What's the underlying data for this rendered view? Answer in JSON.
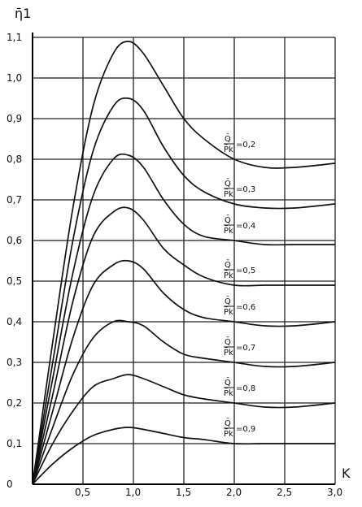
{
  "chart_data": {
    "type": "line",
    "title": "",
    "ylabel": "η̄1",
    "xlabel": "K",
    "xlim": [
      0,
      3.0
    ],
    "ylim": [
      0,
      1.1
    ],
    "grid": true,
    "x_ticks": [
      "0,5",
      "1,0",
      "1,5",
      "2,0",
      "2,5",
      "3,0"
    ],
    "y_ticks": [
      "0",
      "0,1",
      "0,2",
      "0,3",
      "0,4",
      "0,5",
      "0,6",
      "0,7",
      "0,8",
      "0,9",
      "1,0",
      "1,1"
    ],
    "x_tick_values": [
      0.5,
      1.0,
      1.5,
      2.0,
      2.5,
      3.0
    ],
    "y_tick_values": [
      0,
      0.1,
      0.2,
      0.3,
      0.4,
      0.5,
      0.6,
      0.7,
      0.8,
      0.9,
      1.0,
      1.1
    ],
    "curve_labels_text": {
      "numerator": "Q̄",
      "denominator": "P̄k"
    },
    "series": [
      {
        "name": "0,2",
        "x": [
          0,
          0.2,
          0.4,
          0.6,
          0.8,
          0.95,
          1.1,
          1.3,
          1.5,
          1.7,
          2.0,
          2.3,
          2.6,
          3.0
        ],
        "y": [
          0,
          0.35,
          0.68,
          0.93,
          1.06,
          1.09,
          1.06,
          0.98,
          0.9,
          0.85,
          0.8,
          0.78,
          0.78,
          0.79
        ]
      },
      {
        "name": "0,3",
        "x": [
          0,
          0.2,
          0.4,
          0.6,
          0.8,
          0.95,
          1.1,
          1.3,
          1.5,
          1.7,
          2.0,
          2.3,
          2.6,
          3.0
        ],
        "y": [
          0,
          0.3,
          0.6,
          0.82,
          0.93,
          0.95,
          0.92,
          0.83,
          0.76,
          0.72,
          0.69,
          0.68,
          0.68,
          0.69
        ]
      },
      {
        "name": "0,4",
        "x": [
          0,
          0.2,
          0.4,
          0.6,
          0.8,
          0.95,
          1.1,
          1.3,
          1.5,
          1.7,
          2.0,
          2.3,
          2.6,
          3.0
        ],
        "y": [
          0,
          0.26,
          0.52,
          0.71,
          0.8,
          0.81,
          0.78,
          0.7,
          0.64,
          0.61,
          0.6,
          0.59,
          0.59,
          0.59
        ]
      },
      {
        "name": "0,5",
        "x": [
          0,
          0.2,
          0.4,
          0.6,
          0.8,
          0.95,
          1.1,
          1.3,
          1.5,
          1.7,
          2.0,
          2.3,
          2.6,
          3.0
        ],
        "y": [
          0,
          0.22,
          0.45,
          0.61,
          0.67,
          0.68,
          0.65,
          0.58,
          0.54,
          0.51,
          0.49,
          0.49,
          0.49,
          0.49
        ]
      },
      {
        "name": "0,6",
        "x": [
          0,
          0.2,
          0.4,
          0.6,
          0.8,
          0.95,
          1.1,
          1.3,
          1.5,
          1.7,
          2.0,
          2.3,
          2.6,
          3.0
        ],
        "y": [
          0,
          0.18,
          0.36,
          0.49,
          0.54,
          0.55,
          0.53,
          0.47,
          0.43,
          0.41,
          0.4,
          0.39,
          0.39,
          0.4
        ]
      },
      {
        "name": "0,7",
        "x": [
          0,
          0.2,
          0.4,
          0.6,
          0.8,
          0.95,
          1.1,
          1.3,
          1.5,
          1.7,
          2.0,
          2.3,
          2.6,
          3.0
        ],
        "y": [
          0,
          0.14,
          0.27,
          0.36,
          0.4,
          0.4,
          0.39,
          0.35,
          0.32,
          0.31,
          0.3,
          0.29,
          0.29,
          0.3
        ]
      },
      {
        "name": "0,8",
        "x": [
          0,
          0.2,
          0.4,
          0.6,
          0.8,
          0.95,
          1.1,
          1.3,
          1.5,
          1.7,
          2.0,
          2.3,
          2.6,
          3.0
        ],
        "y": [
          0,
          0.1,
          0.18,
          0.24,
          0.26,
          0.27,
          0.26,
          0.24,
          0.22,
          0.21,
          0.2,
          0.19,
          0.19,
          0.2
        ]
      },
      {
        "name": "0,9",
        "x": [
          0,
          0.2,
          0.4,
          0.6,
          0.8,
          0.95,
          1.1,
          1.3,
          1.5,
          1.7,
          2.0,
          2.3,
          2.6,
          3.0
        ],
        "y": [
          0,
          0.05,
          0.09,
          0.12,
          0.135,
          0.14,
          0.135,
          0.125,
          0.115,
          0.11,
          0.1,
          0.1,
          0.1,
          0.1
        ]
      }
    ]
  }
}
